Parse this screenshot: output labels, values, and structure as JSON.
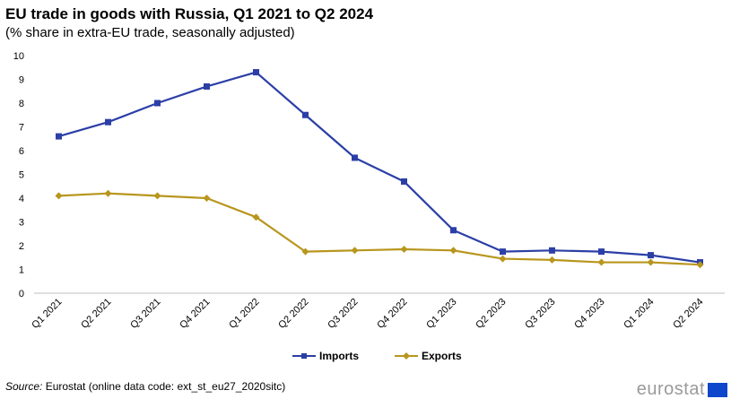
{
  "chart_data": {
    "type": "line",
    "title": "EU trade in goods with Russia, Q1 2021 to Q2 2024",
    "subtitle": "(% share in extra-EU trade, seasonally adjusted)",
    "categories": [
      "Q1 2021",
      "Q2 2021",
      "Q3 2021",
      "Q4 2021",
      "Q1 2022",
      "Q2 2022",
      "Q3 2022",
      "Q4 2022",
      "Q1 2023",
      "Q2 2023",
      "Q3 2023",
      "Q4 2023",
      "Q1 2024",
      "Q2 2024"
    ],
    "series": [
      {
        "name": "Imports",
        "color": "#2b3fa6",
        "marker": "square",
        "values": [
          6.6,
          7.2,
          8.0,
          8.7,
          9.3,
          7.5,
          5.7,
          4.7,
          2.65,
          1.75,
          1.8,
          1.75,
          1.6,
          1.3
        ]
      },
      {
        "name": "Exports",
        "color": "#b8961e",
        "marker": "diamond",
        "values": [
          4.1,
          4.2,
          4.1,
          4.0,
          3.2,
          1.75,
          1.8,
          1.85,
          1.8,
          1.45,
          1.4,
          1.3,
          1.3,
          1.2
        ]
      }
    ],
    "ylim": [
      0,
      10
    ],
    "yticks": [
      "0",
      "1",
      "2",
      "3",
      "4",
      "5",
      "6",
      "7",
      "8",
      "9",
      "10"
    ],
    "grid": false,
    "legend_position": "bottom"
  },
  "source": {
    "label": "Source:",
    "text": "Eurostat (online data code: ext_st_eu27_2020sitc)"
  },
  "logo": {
    "text": "eurostat",
    "flag_color": "#0e47cb"
  }
}
